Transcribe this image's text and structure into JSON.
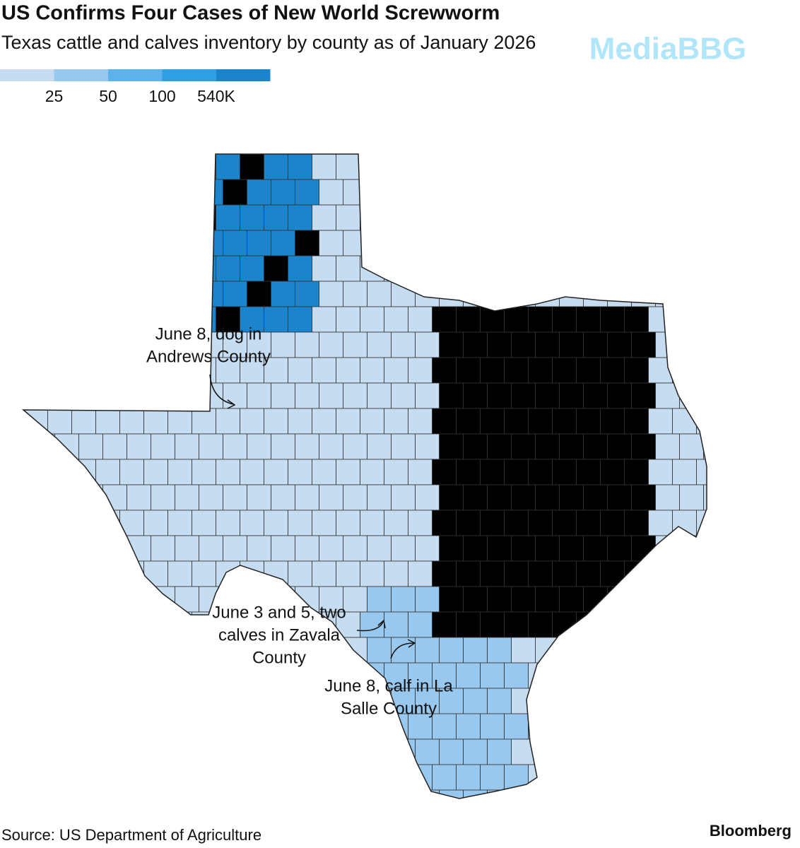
{
  "chart_data": {
    "type": "choropleth",
    "title": "US Confirms Four Cases of New World Screwworm",
    "subtitle": "Texas cattle and calves inventory by county as of January 2026",
    "legend": {
      "colors": [
        "#c6dcf0",
        "#98c8ee",
        "#5cb3ec",
        "#2fa0e4",
        "#1a85cc"
      ],
      "ticks": [
        25,
        50,
        100,
        {
          "value": 540,
          "label": "540K"
        }
      ]
    },
    "annotations": [
      {
        "lines": [
          "June 8, dog in",
          "Andrews County"
        ]
      },
      {
        "lines": [
          "June 3 and 5, two",
          "calves in Zavala",
          "County"
        ]
      },
      {
        "lines": [
          "June 8, calf in La",
          "Salle County"
        ]
      }
    ],
    "watermark": "MediaBBG",
    "source": "Source: US Department of Agriculture",
    "brand": "Bloomberg"
  }
}
